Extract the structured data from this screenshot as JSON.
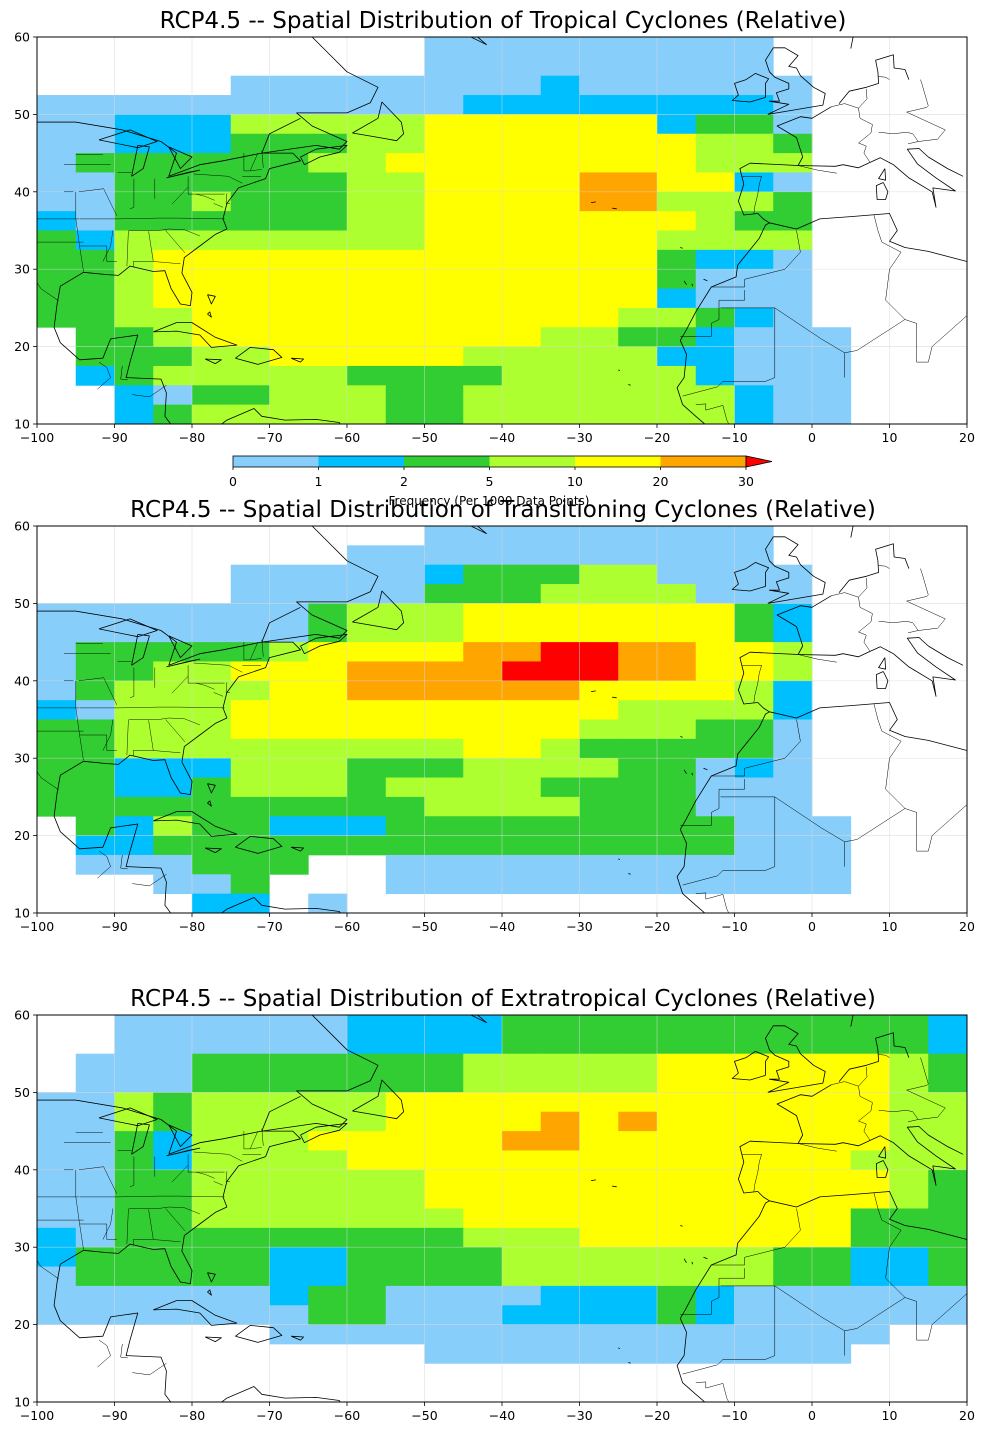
{
  "colors": {
    "bins": [
      "#87cefa",
      "#00bfff",
      "#32cd32",
      "#adff2f",
      "#ffff00",
      "#ffa500",
      "#ff0000"
    ],
    "land_line": "#000000",
    "grid": "#d8d8d8"
  },
  "colorbar": {
    "ticks": [
      "0",
      "1",
      "2",
      "5",
      "10",
      "20",
      "30"
    ],
    "label": "Frequency (Per 1000 Data Points)",
    "extend": "max"
  },
  "chart_data": [
    {
      "type": "heatmap",
      "title": "RCP4.5 -- Spatial Distribution of Tropical Cyclones (Relative)",
      "xlim": [
        -100,
        20
      ],
      "ylim": [
        10,
        60
      ],
      "xticks": [
        "−100",
        "−90",
        "−80",
        "−70",
        "−60",
        "−50",
        "−40",
        "−30",
        "−20",
        "−10",
        "0",
        "10",
        "20"
      ],
      "yticks": [
        "10",
        "20",
        "30",
        "40",
        "50",
        "60"
      ],
      "grid": true,
      "cell_size_deg": 5,
      "lon_start": -100,
      "lat_start": 60,
      "rows": [
        "..........000000000.......",
        "..........000000000.......",
        ".....000000001000000......",
        "00000000000111111110......",
        "00111333334444441220......",
        "00111222334444444332......",
        "02222223344444444333......",
        "00222222334444554410......",
        "00223222334444553332......",
        "10222222334444444322......",
        "21333333334444443333......",
        "22344444444444442110......",
        "22344444444444442000......",
        "22344444444444441000......",
        "22334444444444433210......",
        ".22344444444433221000......",
        ".22233444443333311000......",
        ".12333332222333331000......",
        "..1022333223333333100.....",
        "..1233333223333333100....."
      ]
    },
    {
      "type": "heatmap",
      "title": "RCP4.5 -- Spatial Distribution of Transitioning Cyclones (Relative)",
      "xlim": [
        -100,
        20
      ],
      "ylim": [
        10,
        60
      ],
      "xticks": [
        "−100",
        "−90",
        "−80",
        "−70",
        "−60",
        "−50",
        "−40",
        "−30",
        "−20",
        "−10",
        "0",
        "10",
        "20"
      ],
      "yticks": [
        "10",
        "20",
        "30",
        "40",
        "50",
        "60"
      ],
      "grid": true,
      "cell_size_deg": 5,
      "lon_start": -100,
      "lat_start": 60,
      "rows": [
        "..........000000000.......",
        "........00000000000.......",
        ".....000001222330000......",
        ".....000002223333000......",
        "00000002333444444421......",
        "00000002333444444421......",
        "02222234444556655443......",
        "02233444555566655443......",
        "02333344555555444431......",
        "10333444444444433331......",
        "22333444444444333220......",
        "22333333333443222220......",
        "22111333222333322010......",
        "22112333233332222000......",
        "22222222223333222000......",
        ".21322111222222222000......",
        ".11222222222222222000......",
        ".000222..000000000000......",
        "...002...000000000000......",
        "....11.0......................"
      ]
    },
    {
      "type": "heatmap",
      "title": "RCP4.5 -- Spatial Distribution of Extratropical Cyclones (Relative)",
      "xlim": [
        -100,
        20
      ],
      "ylim": [
        10,
        60
      ],
      "xticks": [
        "−100",
        "−90",
        "−80",
        "−70",
        "−60",
        "−50",
        "−40",
        "−30",
        "−20",
        "−10",
        "0",
        "10",
        "20"
      ],
      "yticks": [
        "10",
        "20",
        "30",
        "40",
        "50",
        "60"
      ],
      "grid": true,
      "cell_size_deg": 5,
      "lon_start": -100,
      "lat_start": 60,
      "rows": [
        "..0000001111222222222221000000",
        "..0000001111222222222221000000",
        ".000222222233333444444322200000",
        ".000222222233333444444322200000",
        "00323333344444444444443320000000",
        "00323333344445454444443321000000",
        "00213334444455444444443321000000",
        "0021333344444444444443332100000.",
        "0022333333444444444444322100000.",
        "0022333333444444444444322100000.",
        "0022333333344444444442220000000.",
        "1022222222233344444442222200000.",
        "1222221122223333333221122000000.",
        "0222221122223333333221122000000.",
        "0000001220000111210000000000...",
        "0000000220001111210000000000...",
        "......0000000000000000.........",
        "..........00000000000.........",
        "............................",
        "............................"
      ]
    }
  ]
}
